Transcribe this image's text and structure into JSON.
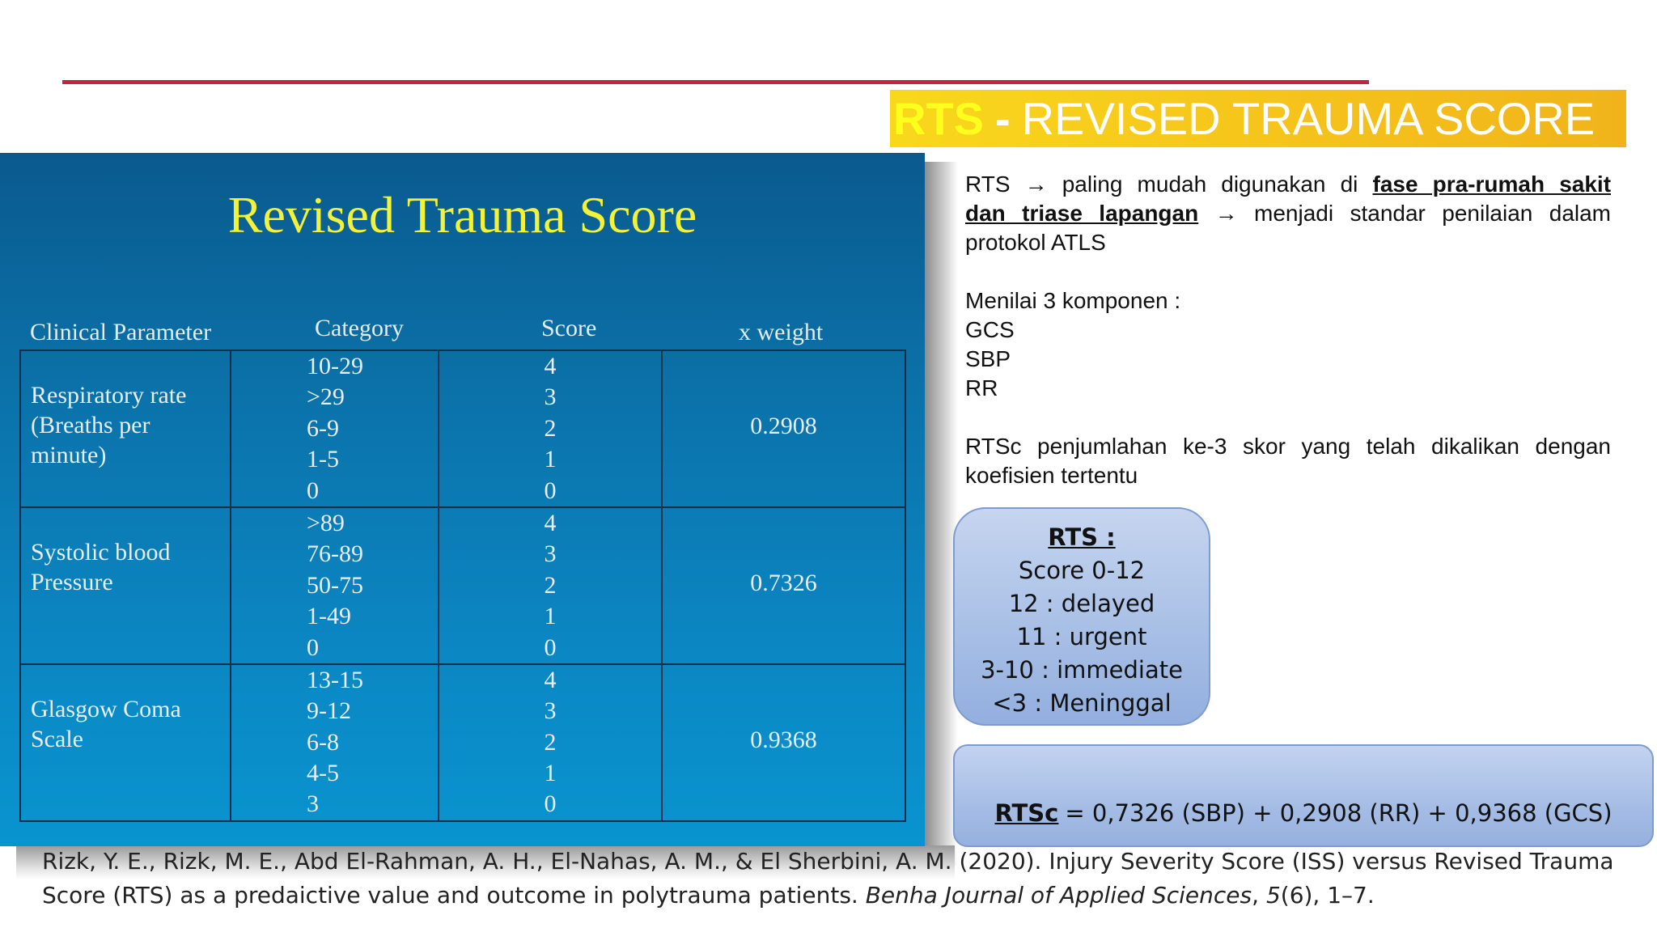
{
  "header": {
    "title_acronym": "RTS",
    "title_dash": "-",
    "title_rest": "REVISED TRAUMA SCORE"
  },
  "slide": {
    "title": "Revised Trauma Score",
    "columns": [
      "Clinical Parameter",
      "Category",
      "Score",
      "x weight"
    ],
    "rows": [
      {
        "param_line1": "Respiratory rate",
        "param_line2": "(Breaths per minute)",
        "categories": [
          "10-29",
          ">29",
          "6-9",
          "1-5",
          "0"
        ],
        "scores": [
          "4",
          "3",
          "2",
          "1",
          "0"
        ],
        "weight": "0.2908"
      },
      {
        "param_line1": "Systolic blood",
        "param_line2": "Pressure",
        "categories": [
          ">89",
          "76-89",
          "50-75",
          "1-49",
          "0"
        ],
        "scores": [
          "4",
          "3",
          "2",
          "1",
          "0"
        ],
        "weight": "0.7326"
      },
      {
        "param_line1": "Glasgow Coma",
        "param_line2": "Scale",
        "categories": [
          "13-15",
          "9-12",
          "6-8",
          "4-5",
          "3"
        ],
        "scores": [
          "4",
          "3",
          "2",
          "1",
          "0"
        ],
        "weight": "0.9368"
      }
    ]
  },
  "right": {
    "p1_a": "RTS",
    "p1_arrow": "→",
    "p1_b": "paling mudah digunakan di",
    "p1_link1": "fase pra-rumah sakit",
    "p1_link2": "dan triase lapangan",
    "p1_c": "menjadi standar penilaian dalam",
    "p1_d": "protokol ATLS",
    "p2_intro": "Menilai 3 komponen :",
    "components": [
      "GCS",
      "SBP",
      "RR"
    ],
    "p3_line1": "RTSc penjumlahan ke-3 skor yang telah dikalikan dengan",
    "p3_line2": "koefisien tertentu"
  },
  "rts_box": {
    "heading": "RTS :",
    "lines": [
      "Score 0-12",
      "12 : delayed",
      "11 : urgent",
      "3-10 : immediate",
      "<3 : Meninggal"
    ]
  },
  "rtsc_box": {
    "label": "RTSc",
    "formula": "= 0,7326 (SBP) + 0,2908 (RR) + 0,9368 (GCS)"
  },
  "reference": {
    "part1": "Rizk, Y. E., Rizk, M. E., Abd El-Rahman, A. H., El-Nahas, A. M., & El Sherbini, A. M. (2020). Injury Severity Score (ISS) versus Revised Trauma Score (RTS) as a predaictive value and outcome in polytrauma patients.",
    "journal": "Benha Journal of Applied Sciences",
    "sep": ",",
    "volume": "5",
    "rest": "(6), 1–7."
  }
}
